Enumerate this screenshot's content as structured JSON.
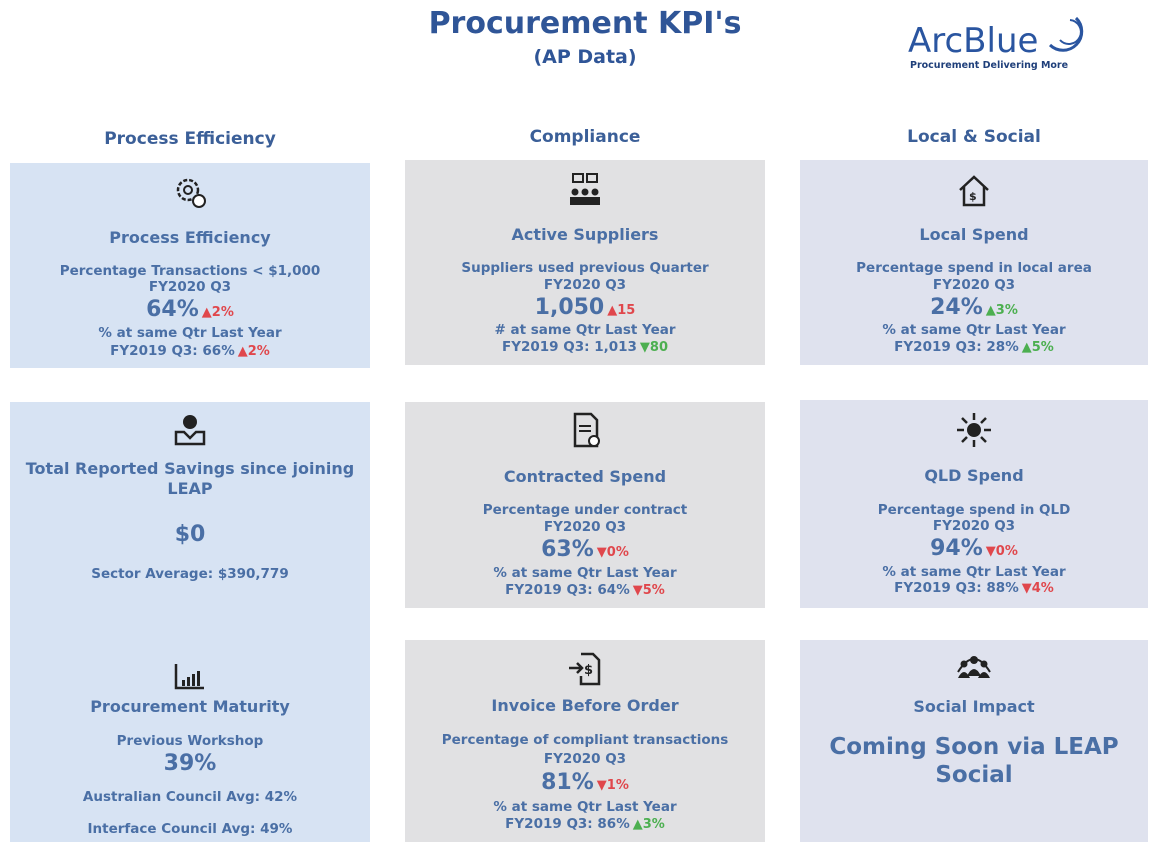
{
  "header": {
    "title": "Procurement KPI's",
    "subtitle": "(AP Data)",
    "logo": {
      "name": "ArcBlue",
      "tagline": "Procurement Delivering More"
    }
  },
  "columns": [
    {
      "heading": "Process Efficiency",
      "cards": [
        {
          "title": "Process Efficiency",
          "lines": [
            {
              "text": "Percentage Transactions < $1,000"
            },
            {
              "text": "FY2020 Q3"
            },
            {
              "text": "64%",
              "emphasis": true,
              "delta": "▲2%",
              "delta_color": "#e0474c"
            },
            {
              "text": "% at same Qtr Last Year"
            },
            {
              "text": "FY2019 Q3: 66%",
              "delta": "▲2%",
              "delta_color": "#e0474c"
            }
          ]
        },
        {
          "title": "Total Reported Savings since joining LEAP",
          "lines": [
            {
              "text": "$0",
              "emphasis": true
            },
            {
              "text": "Sector Average: $390,779"
            }
          ]
        },
        {
          "title": "Procurement Maturity",
          "lines": [
            {
              "text": "Previous Workshop"
            },
            {
              "text": "39%",
              "emphasis": true
            },
            {
              "text": "Australian Council Avg: 42%"
            },
            {
              "text": "Interface Council Avg: 49%"
            }
          ]
        }
      ]
    },
    {
      "heading": "Compliance",
      "cards": [
        {
          "title": "Active Suppliers",
          "lines": [
            {
              "text": "Suppliers used previous Quarter"
            },
            {
              "text": "FY2020 Q3"
            },
            {
              "text": "1,050",
              "emphasis": true,
              "delta": "▲15",
              "delta_color": "#e0474c"
            },
            {
              "text": "# at same Qtr Last Year"
            },
            {
              "text": "FY2019 Q3: 1,013",
              "delta": "▼80",
              "delta_color": "#4caf50"
            }
          ]
        },
        {
          "title": "Contracted Spend",
          "lines": [
            {
              "text": "Percentage under contract"
            },
            {
              "text": "FY2020 Q3"
            },
            {
              "text": "63%",
              "emphasis": true,
              "delta": "▼0%",
              "delta_color": "#e0474c"
            },
            {
              "text": "% at same Qtr Last Year"
            },
            {
              "text": "FY2019 Q3: 64%",
              "delta": "▼5%",
              "delta_color": "#e0474c"
            }
          ]
        },
        {
          "title": "Invoice Before Order",
          "lines": [
            {
              "text": "Percentage of compliant transactions"
            },
            {
              "text": "FY2020 Q3"
            },
            {
              "text": "81%",
              "emphasis": true,
              "delta": "▼1%",
              "delta_color": "#e0474c"
            },
            {
              "text": "% at same Qtr Last Year"
            },
            {
              "text": "FY2019 Q3: 86%",
              "delta": "▲3%",
              "delta_color": "#4caf50"
            }
          ]
        }
      ]
    },
    {
      "heading": "Local & Social",
      "cards": [
        {
          "title": "Local Spend",
          "lines": [
            {
              "text": "Percentage spend in local area"
            },
            {
              "text": "FY2020 Q3"
            },
            {
              "text": "24%",
              "emphasis": true,
              "delta": "▲3%",
              "delta_color": "#4caf50"
            },
            {
              "text": "% at same Qtr Last Year"
            },
            {
              "text": "FY2019 Q3: 28%",
              "delta": "▲5%",
              "delta_color": "#4caf50"
            }
          ]
        },
        {
          "title": "QLD Spend",
          "lines": [
            {
              "text": "Percentage spend in QLD"
            },
            {
              "text": "FY2020 Q3"
            },
            {
              "text": "94%",
              "emphasis": true,
              "delta": "▼0%",
              "delta_color": "#e0474c"
            },
            {
              "text": "% at same Qtr Last Year"
            },
            {
              "text": "FY2019 Q3: 88%",
              "delta": "▼4%",
              "delta_color": "#e0474c"
            }
          ]
        },
        {
          "title": "Social Impact",
          "lines": [
            {
              "text": "Coming Soon via LEAP Social",
              "emphasis": true,
              "headline": true
            }
          ]
        }
      ]
    }
  ]
}
